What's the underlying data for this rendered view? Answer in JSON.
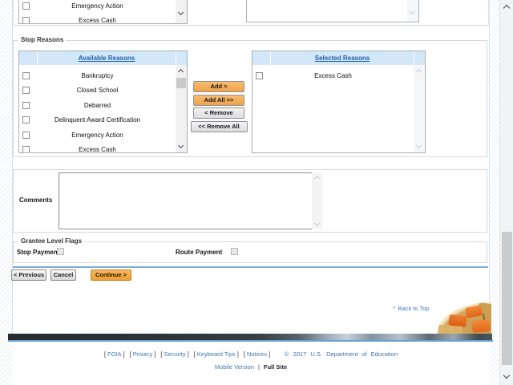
{
  "top_list": {
    "visible_items": [
      "Emergency Action",
      "Excess Cash"
    ]
  },
  "stop_reasons": {
    "legend": "Stop Reasons",
    "available_header": "Available Reasons",
    "available_items": [
      "Bankruptcy",
      "Closed School",
      "Debarred",
      "Delinquent Award Certification",
      "Emergency Action",
      "Excess Cash"
    ],
    "selected_header": "Selected Reasons",
    "selected_items": [
      "Excess Cash"
    ],
    "add_label": "Add >",
    "add_all_label": "Add All >>",
    "remove_label": "< Remove",
    "remove_all_label": "<< Remove All"
  },
  "comments": {
    "label": "Comments",
    "value": ""
  },
  "grantee_flags": {
    "legend": "Grantee Level Flags",
    "stop_payment": "Stop Payment",
    "route_payment": "Route Payment"
  },
  "nav": {
    "previous": "< Previous",
    "cancel": "Cancel",
    "continue": "Continue >"
  },
  "back_to_top": {
    "caret": "^",
    "label": "Back to Top"
  },
  "footer": {
    "bracket_open": "[",
    "bracket_close": "]",
    "links": [
      "FOIA",
      "Privacy",
      "Security",
      "Keyboard Tips",
      "Notices"
    ],
    "copyright": "© 2017 U.S. Department of Education",
    "mobile_version": "Mobile Version",
    "divider": "|",
    "full_site": "Full Site"
  },
  "colors": {
    "accent_orange": "#efa348",
    "header_blue": "#1d5fa9",
    "link_blue": "#3c79b8",
    "rule_blue": "#7aabde"
  }
}
